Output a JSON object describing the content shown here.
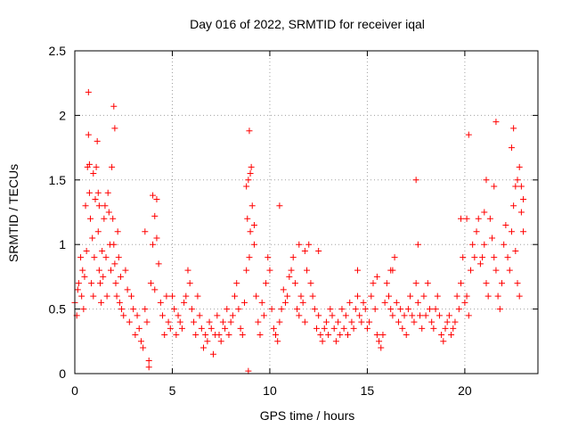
{
  "chart_data": {
    "type": "scatter",
    "title": "Day 016 of 2022, SRMTID for receiver iqal",
    "xlabel": "GPS time / hours",
    "ylabel": "SRMTID / TECUs",
    "xlim": [
      0,
      23.75
    ],
    "ylim": [
      0,
      2.5
    ],
    "xticks": [
      0,
      5,
      10,
      15,
      20
    ],
    "yticks": [
      0,
      0.5,
      1,
      1.5,
      2,
      2.5
    ],
    "xtick_labels": [
      "0",
      "5",
      "10",
      "15",
      "20"
    ],
    "ytick_labels": [
      "0",
      "0.5",
      "1",
      "1.5",
      "2",
      "2.5"
    ],
    "grid": true,
    "marker": "+",
    "series": [
      {
        "name": "SRMTID",
        "color": "#ff0000",
        "x": [
          0.0,
          0.1,
          0.15,
          0.2,
          0.3,
          0.35,
          0.4,
          0.45,
          0.5,
          0.55,
          0.6,
          0.65,
          0.7,
          0.75,
          0.8,
          0.85,
          0.9,
          0.95,
          1.0,
          1.05,
          1.1,
          1.15,
          1.2,
          1.25,
          1.3,
          1.35,
          1.4,
          1.45,
          1.5,
          1.55,
          1.6,
          1.65,
          1.7,
          1.75,
          1.8,
          1.85,
          1.9,
          1.95,
          2.0,
          2.05,
          2.1,
          2.15,
          2.2,
          2.25,
          2.3,
          2.35,
          2.4,
          2.5,
          2.6,
          2.7,
          2.8,
          2.9,
          3.0,
          3.1,
          3.2,
          3.3,
          3.4,
          3.5,
          3.6,
          3.7,
          3.8,
          3.9,
          4.0,
          4.1,
          4.2,
          4.3,
          4.4,
          4.5,
          4.6,
          4.7,
          4.8,
          4.9,
          5.0,
          5.1,
          5.2,
          5.3,
          5.4,
          5.5,
          5.6,
          5.7,
          5.8,
          5.9,
          6.0,
          6.1,
          6.2,
          6.3,
          6.4,
          6.5,
          6.6,
          6.7,
          6.8,
          6.9,
          7.0,
          7.1,
          7.2,
          7.3,
          7.4,
          7.5,
          7.6,
          7.7,
          7.8,
          7.9,
          8.0,
          8.1,
          8.2,
          8.3,
          8.4,
          8.5,
          8.6,
          8.7,
          8.8,
          8.85,
          8.9,
          8.95,
          9.0,
          9.05,
          9.1,
          9.2,
          9.3,
          9.4,
          9.5,
          9.6,
          9.7,
          9.8,
          9.9,
          10.0,
          10.1,
          10.2,
          10.3,
          10.4,
          10.5,
          10.6,
          10.7,
          10.8,
          10.9,
          11.0,
          11.1,
          11.2,
          11.3,
          11.4,
          11.5,
          11.6,
          11.7,
          11.8,
          11.9,
          12.0,
          12.1,
          12.2,
          12.3,
          12.4,
          12.5,
          12.6,
          12.7,
          12.8,
          12.9,
          13.0,
          13.1,
          13.2,
          13.3,
          13.4,
          13.5,
          13.6,
          13.7,
          13.8,
          13.9,
          14.0,
          14.1,
          14.2,
          14.3,
          14.4,
          14.5,
          14.6,
          14.7,
          14.8,
          14.9,
          15.0,
          15.1,
          15.2,
          15.3,
          15.4,
          15.5,
          15.6,
          15.7,
          15.8,
          15.9,
          16.0,
          16.1,
          16.2,
          16.3,
          16.4,
          16.5,
          16.6,
          16.7,
          16.8,
          16.9,
          17.0,
          17.1,
          17.2,
          17.3,
          17.4,
          17.5,
          17.6,
          17.7,
          17.8,
          17.9,
          18.0,
          18.1,
          18.2,
          18.3,
          18.4,
          18.5,
          18.6,
          18.7,
          18.8,
          18.9,
          19.0,
          19.1,
          19.2,
          19.3,
          19.4,
          19.5,
          19.6,
          19.7,
          19.8,
          19.9,
          20.0,
          20.1,
          20.2,
          20.3,
          20.4,
          20.5,
          20.6,
          20.7,
          20.8,
          20.9,
          21.0,
          21.1,
          21.2,
          21.3,
          21.4,
          21.5,
          21.6,
          21.7,
          21.8,
          21.9,
          22.0,
          22.1,
          22.2,
          22.3,
          22.4,
          22.5,
          22.6,
          22.7,
          22.8,
          22.9,
          23.0,
          0.7,
          0.75,
          1.2,
          1.25,
          0.95,
          2.0,
          2.05,
          4.0,
          4.1,
          4.2,
          3.6,
          3.8,
          8.9,
          8.95,
          9.0,
          8.8,
          9.2,
          17.6,
          17.5,
          20.1,
          20.2,
          21.5,
          21.6,
          22.4,
          22.5,
          22.6,
          22.8,
          22.9,
          23.0,
          22.7,
          21.0,
          21.1,
          19.8,
          10.5,
          11.5,
          11.8,
          12.5,
          14.5,
          15.5,
          16.2,
          16.3
        ],
        "y": [
          0.55,
          0.45,
          0.65,
          0.7,
          0.9,
          0.6,
          0.8,
          0.5,
          0.75,
          1.3,
          0.95,
          1.6,
          1.85,
          1.4,
          1.2,
          0.7,
          1.05,
          0.6,
          0.9,
          1.35,
          1.6,
          1.8,
          1.1,
          0.8,
          0.7,
          0.55,
          0.95,
          0.75,
          1.2,
          1.3,
          0.9,
          0.6,
          1.4,
          1.25,
          1.0,
          0.8,
          1.6,
          1.2,
          1.0,
          0.85,
          0.7,
          0.6,
          1.1,
          0.9,
          0.55,
          0.75,
          0.5,
          0.45,
          0.8,
          0.65,
          0.4,
          0.6,
          0.5,
          0.3,
          0.45,
          0.35,
          0.25,
          0.2,
          0.5,
          0.4,
          0.1,
          0.7,
          1.0,
          0.65,
          1.35,
          0.85,
          0.55,
          0.45,
          0.3,
          0.6,
          0.4,
          0.35,
          0.6,
          0.5,
          0.3,
          0.45,
          0.4,
          0.35,
          0.55,
          0.6,
          0.8,
          0.7,
          0.5,
          0.4,
          0.3,
          0.6,
          0.45,
          0.35,
          0.2,
          0.3,
          0.25,
          0.4,
          0.35,
          0.15,
          0.3,
          0.45,
          0.3,
          0.25,
          0.4,
          0.35,
          0.5,
          0.3,
          0.4,
          0.45,
          0.6,
          0.7,
          0.5,
          0.35,
          0.3,
          0.55,
          0.8,
          1.2,
          1.5,
          0.9,
          1.1,
          1.6,
          1.3,
          1.0,
          0.6,
          0.4,
          0.3,
          0.55,
          0.45,
          0.7,
          0.9,
          0.8,
          0.5,
          0.35,
          0.3,
          0.25,
          0.4,
          0.5,
          0.65,
          0.55,
          0.6,
          0.75,
          0.8,
          0.9,
          0.7,
          0.5,
          0.45,
          0.6,
          0.55,
          0.4,
          0.8,
          1.0,
          0.7,
          0.6,
          0.5,
          0.35,
          0.45,
          0.3,
          0.25,
          0.35,
          0.4,
          0.3,
          0.5,
          0.45,
          0.35,
          0.25,
          0.4,
          0.3,
          0.5,
          0.35,
          0.45,
          0.3,
          0.55,
          0.4,
          0.35,
          0.5,
          0.6,
          0.45,
          0.4,
          0.55,
          0.5,
          0.35,
          0.4,
          0.6,
          0.7,
          0.5,
          0.3,
          0.25,
          0.2,
          0.3,
          0.55,
          0.7,
          0.6,
          0.5,
          0.45,
          0.9,
          0.55,
          0.4,
          0.5,
          0.35,
          0.45,
          0.3,
          0.5,
          0.6,
          0.45,
          0.4,
          0.7,
          0.55,
          0.45,
          0.35,
          0.6,
          0.45,
          0.7,
          0.5,
          0.4,
          0.35,
          0.5,
          0.6,
          0.45,
          0.3,
          0.25,
          0.35,
          0.4,
          0.45,
          0.3,
          0.35,
          0.4,
          0.6,
          0.5,
          0.7,
          0.9,
          0.55,
          0.6,
          0.45,
          0.8,
          1.0,
          0.9,
          1.1,
          1.2,
          0.85,
          0.9,
          1.0,
          0.7,
          0.6,
          1.2,
          1.05,
          0.9,
          0.8,
          0.6,
          0.5,
          0.7,
          1.0,
          1.15,
          0.9,
          0.8,
          1.1,
          1.3,
          0.95,
          0.7,
          0.6,
          1.25,
          1.1,
          2.18,
          1.62,
          1.4,
          1.3,
          1.55,
          2.07,
          1.9,
          1.38,
          1.22,
          1.05,
          1.1,
          0.05,
          0.02,
          1.88,
          1.55,
          1.45,
          1.15,
          1.0,
          1.5,
          1.2,
          1.85,
          1.45,
          1.95,
          1.75,
          1.9,
          1.45,
          1.6,
          1.45,
          1.35,
          1.5,
          1.25,
          1.5,
          1.2,
          1.3,
          1.0,
          0.95,
          0.95,
          0.8,
          0.75,
          0.8,
          0.8
        ]
      }
    ]
  }
}
